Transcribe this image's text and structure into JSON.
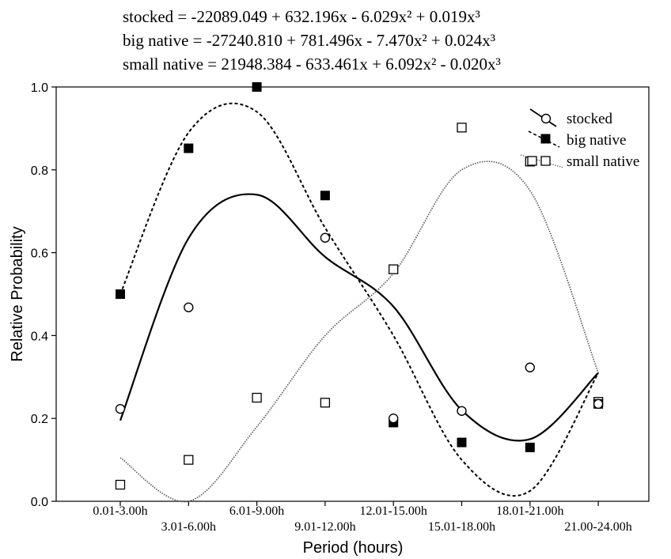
{
  "chart_data": {
    "type": "scatter",
    "equations": {
      "stocked": "stocked = -22089.049 + 632.196x - 6.029x² + 0.019x³",
      "big_native": "big native = -27240.810 + 781.496x - 7.470x² + 0.024x³",
      "small_native": "small native = 21948.384 - 633.461x + 6.092x² - 0.020x³"
    },
    "xlabel": "Period (hours)",
    "ylabel": "Relative Probability",
    "ylim": [
      0.0,
      1.0
    ],
    "yticks": [
      "0.0",
      "0.2",
      "0.4",
      "0.6",
      "0.8",
      "1.0"
    ],
    "categories": [
      "0.01-3.00h",
      "3.01-6.00h",
      "6.01-9.00h",
      "9.01-12.00h",
      "12.01-15.00h",
      "15.01-18.00h",
      "18.01-21.00h",
      "21.00-24.00h"
    ],
    "legend_position": "top-right",
    "series": [
      {
        "name": "stocked",
        "marker": "open-circle",
        "line": "solid",
        "values": [
          0.223,
          0.468,
          null,
          0.636,
          0.2,
          0.218,
          0.323,
          0.235
        ],
        "fit": [
          0.195,
          0.635,
          0.74,
          0.59,
          0.47,
          0.22,
          0.15,
          0.31
        ]
      },
      {
        "name": "big native",
        "marker": "filled-square",
        "line": "dashed",
        "values": [
          0.5,
          0.852,
          1.0,
          0.738,
          0.19,
          0.142,
          0.13,
          0.235
        ],
        "fit": [
          0.5,
          0.89,
          0.94,
          0.66,
          0.4,
          0.1,
          0.025,
          0.31
        ]
      },
      {
        "name": "small native",
        "marker": "open-square",
        "line": "dotted",
        "values": [
          0.04,
          0.1,
          0.25,
          0.238,
          0.56,
          0.902,
          0.82,
          0.24
        ],
        "fit": [
          0.105,
          0.0,
          0.18,
          0.4,
          0.55,
          0.8,
          0.75,
          0.31
        ]
      }
    ]
  }
}
